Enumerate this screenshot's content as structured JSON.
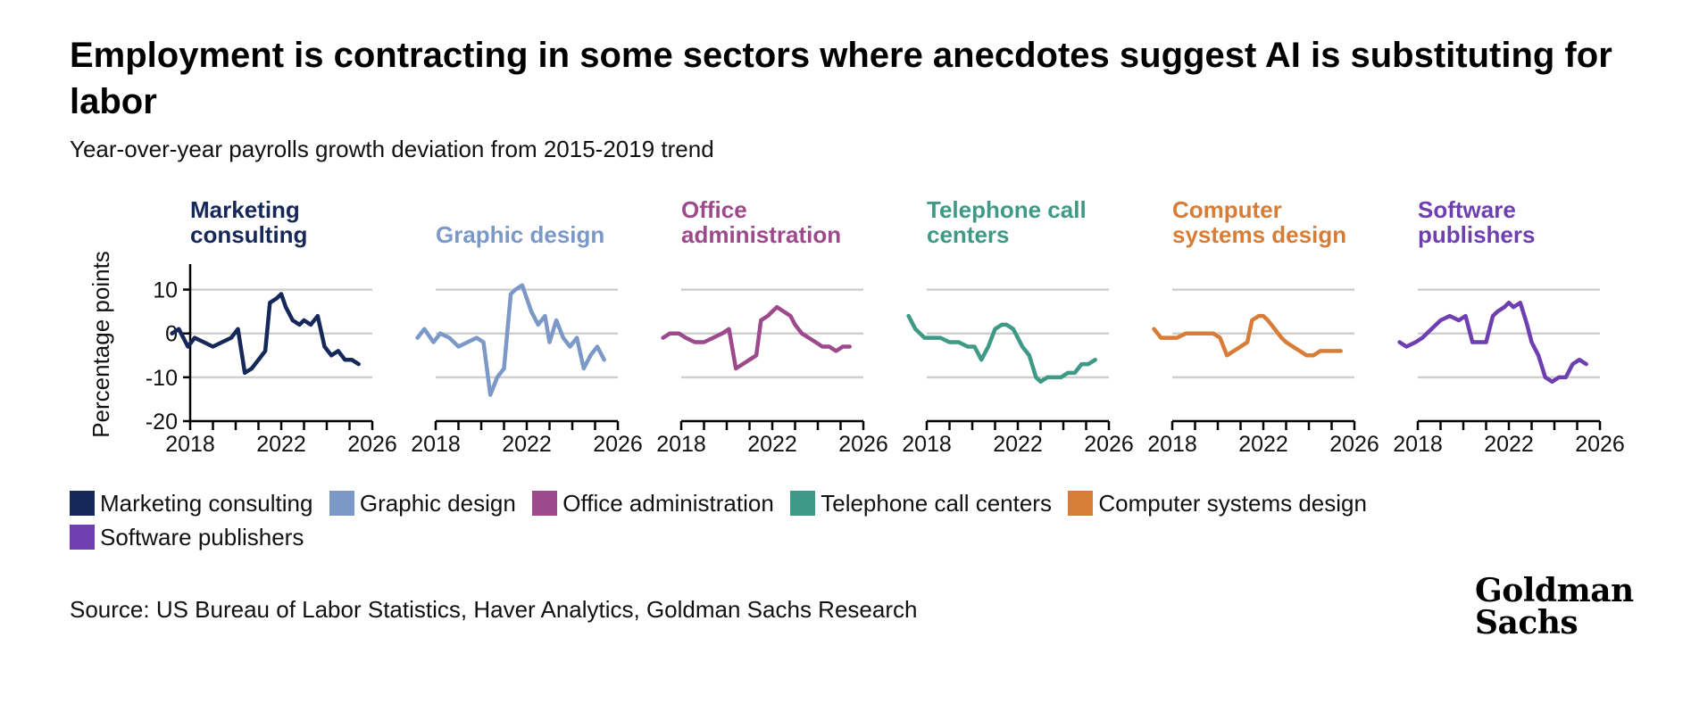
{
  "header": {
    "title": "Employment is contracting in some sectors where anecdotes suggest AI is substituting for labor",
    "subtitle": "Year-over-year payrolls growth deviation from 2015-2019 trend"
  },
  "footer": {
    "source": "Source: US Bureau of Labor Statistics, Haver Analytics, Goldman Sachs Research",
    "logo_line1": "Goldman",
    "logo_line2": "Sachs"
  },
  "legend": [
    {
      "label": "Marketing consulting",
      "color": "#16285a"
    },
    {
      "label": "Graphic design",
      "color": "#7b98c6"
    },
    {
      "label": "Office administration",
      "color": "#9c4a8c"
    },
    {
      "label": "Telephone call centers",
      "color": "#3e9a86"
    },
    {
      "label": "Computer systems design",
      "color": "#d77d37"
    },
    {
      "label": "Software publishers",
      "color": "#6e3fb0"
    }
  ],
  "chart_data": {
    "type": "line",
    "ylabel": "Percentage points",
    "ylim": [
      -20,
      15
    ],
    "yticks": [
      10,
      0,
      -10,
      -20
    ],
    "xlim": [
      2018,
      2026
    ],
    "xticks": [
      2018,
      2022,
      2026
    ],
    "grid": "horizontal",
    "panels": [
      {
        "name": "Marketing consulting",
        "color": "#16285a",
        "x": [
          2017.2,
          2017.5,
          2017.9,
          2018.2,
          2018.6,
          2019.0,
          2019.4,
          2019.8,
          2020.1,
          2020.4,
          2020.7,
          2021.0,
          2021.3,
          2021.5,
          2021.8,
          2022.0,
          2022.2,
          2022.5,
          2022.8,
          2023.0,
          2023.3,
          2023.6,
          2023.9,
          2024.2,
          2024.5,
          2024.8,
          2025.1,
          2025.4
        ],
        "y": [
          0,
          1,
          -3,
          -1,
          -2,
          -3,
          -2,
          -1,
          1,
          -9,
          -8,
          -6,
          -4,
          7,
          8,
          9,
          6,
          3,
          2,
          3,
          2,
          4,
          -3,
          -5,
          -4,
          -6,
          -6,
          -7
        ]
      },
      {
        "name": "Graphic design",
        "color": "#7b98c6",
        "x": [
          2017.2,
          2017.5,
          2017.9,
          2018.2,
          2018.6,
          2019.0,
          2019.4,
          2019.8,
          2020.1,
          2020.4,
          2020.7,
          2021.0,
          2021.3,
          2021.5,
          2021.8,
          2022.0,
          2022.2,
          2022.5,
          2022.8,
          2023.0,
          2023.3,
          2023.6,
          2023.9,
          2024.2,
          2024.5,
          2024.8,
          2025.1,
          2025.4
        ],
        "y": [
          -1,
          1,
          -2,
          0,
          -1,
          -3,
          -2,
          -1,
          -2,
          -14,
          -10,
          -8,
          9,
          10,
          11,
          8,
          5,
          2,
          4,
          -2,
          3,
          -1,
          -3,
          -1,
          -8,
          -5,
          -3,
          -6
        ]
      },
      {
        "name": "Office administration",
        "color": "#9c4a8c",
        "x": [
          2017.2,
          2017.5,
          2017.9,
          2018.2,
          2018.6,
          2019.0,
          2019.4,
          2019.8,
          2020.1,
          2020.4,
          2020.7,
          2021.0,
          2021.3,
          2021.5,
          2021.8,
          2022.0,
          2022.2,
          2022.5,
          2022.8,
          2023.0,
          2023.3,
          2023.6,
          2023.9,
          2024.2,
          2024.5,
          2024.8,
          2025.1,
          2025.4
        ],
        "y": [
          -1,
          0,
          0,
          -1,
          -2,
          -2,
          -1,
          0,
          1,
          -8,
          -7,
          -6,
          -5,
          3,
          4,
          5,
          6,
          5,
          4,
          2,
          0,
          -1,
          -2,
          -3,
          -3,
          -4,
          -3,
          -3
        ]
      },
      {
        "name": "Telephone call centers",
        "color": "#3e9a86",
        "x": [
          2017.2,
          2017.5,
          2017.9,
          2018.2,
          2018.6,
          2019.0,
          2019.4,
          2019.8,
          2020.1,
          2020.4,
          2020.7,
          2021.0,
          2021.3,
          2021.5,
          2021.8,
          2022.0,
          2022.2,
          2022.5,
          2022.8,
          2023.0,
          2023.3,
          2023.6,
          2023.9,
          2024.2,
          2024.5,
          2024.8,
          2025.1,
          2025.4
        ],
        "y": [
          4,
          1,
          -1,
          -1,
          -1,
          -2,
          -2,
          -3,
          -3,
          -6,
          -3,
          1,
          2,
          2,
          1,
          -1,
          -3,
          -5,
          -10,
          -11,
          -10,
          -10,
          -10,
          -9,
          -9,
          -7,
          -7,
          -6
        ]
      },
      {
        "name": "Computer systems design",
        "color": "#d77d37",
        "x": [
          2017.2,
          2017.5,
          2017.9,
          2018.2,
          2018.6,
          2019.0,
          2019.4,
          2019.8,
          2020.1,
          2020.4,
          2020.7,
          2021.0,
          2021.3,
          2021.5,
          2021.8,
          2022.0,
          2022.2,
          2022.5,
          2022.8,
          2023.0,
          2023.3,
          2023.6,
          2023.9,
          2024.2,
          2024.5,
          2024.8,
          2025.1,
          2025.4
        ],
        "y": [
          1,
          -1,
          -1,
          -1,
          0,
          0,
          0,
          0,
          -1,
          -5,
          -4,
          -3,
          -2,
          3,
          4,
          4,
          3,
          1,
          -1,
          -2,
          -3,
          -4,
          -5,
          -5,
          -4,
          -4,
          -4,
          -4
        ]
      },
      {
        "name": "Software publishers",
        "color": "#6e3fb0",
        "x": [
          2017.2,
          2017.5,
          2017.9,
          2018.2,
          2018.6,
          2019.0,
          2019.4,
          2019.8,
          2020.1,
          2020.4,
          2020.7,
          2021.0,
          2021.3,
          2021.5,
          2021.8,
          2022.0,
          2022.2,
          2022.5,
          2022.8,
          2023.0,
          2023.3,
          2023.6,
          2023.9,
          2024.2,
          2024.5,
          2024.8,
          2025.1,
          2025.4
        ],
        "y": [
          -2,
          -3,
          -2,
          -1,
          1,
          3,
          4,
          3,
          4,
          -2,
          -2,
          -2,
          4,
          5,
          6,
          7,
          6,
          7,
          2,
          -2,
          -5,
          -10,
          -11,
          -10,
          -10,
          -7,
          -6,
          -7
        ]
      }
    ]
  }
}
